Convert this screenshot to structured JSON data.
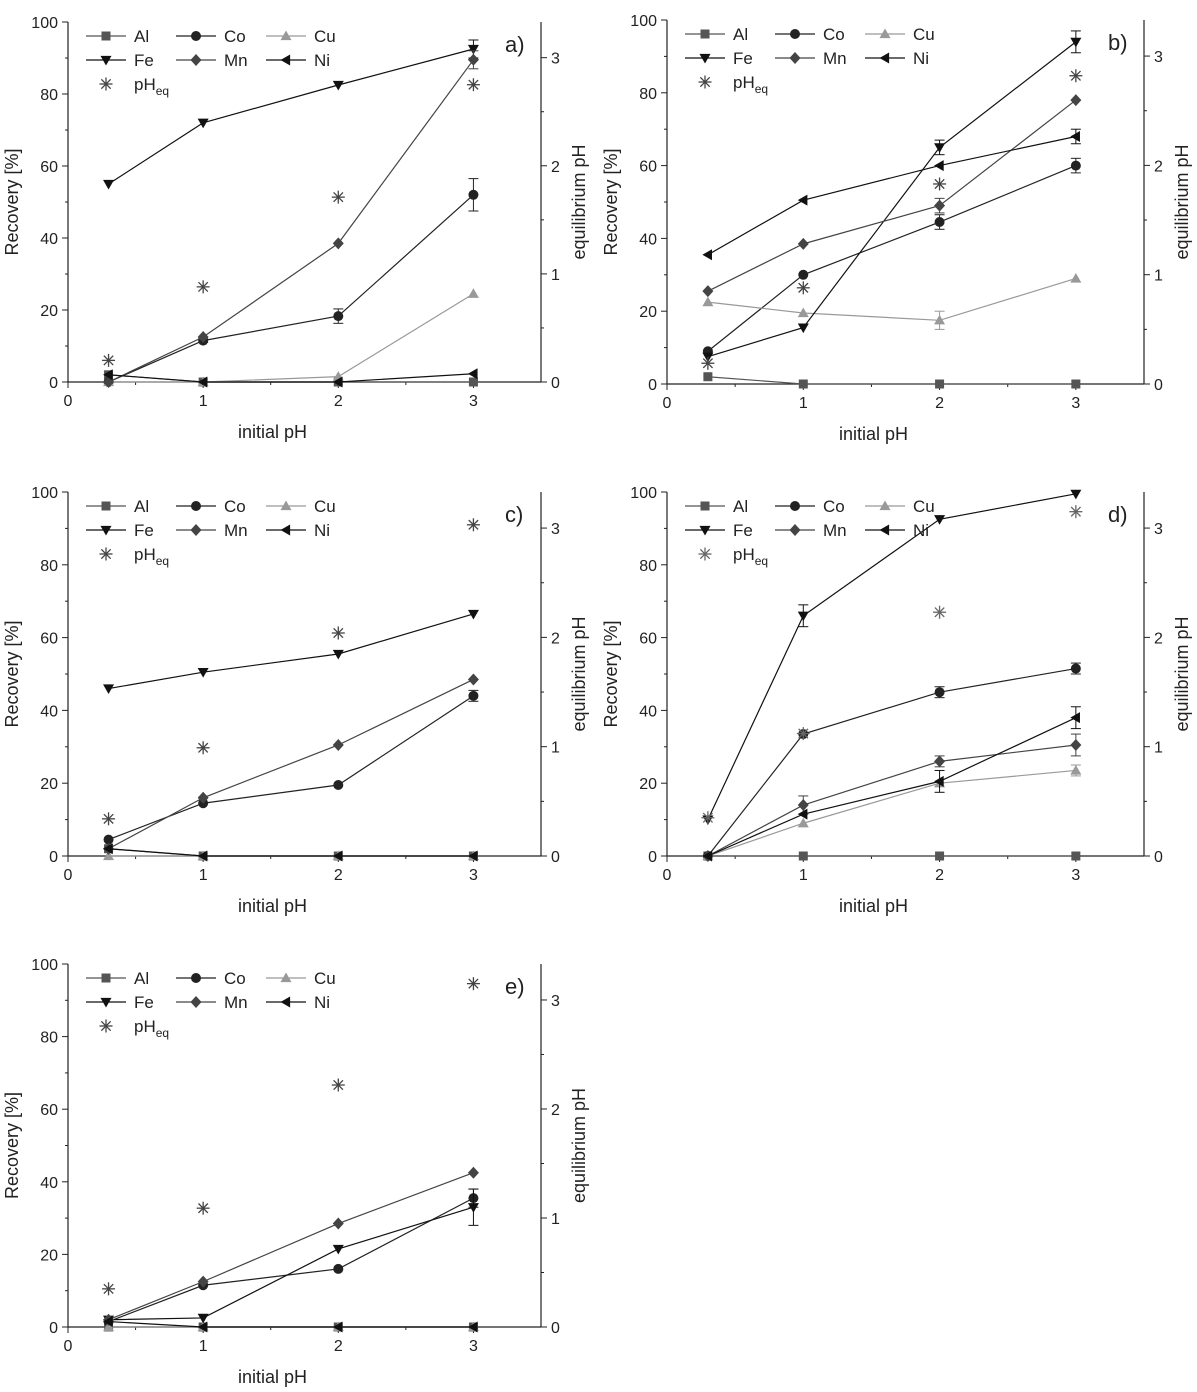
{
  "chart_data": [
    {
      "type": "line",
      "panel_label": "a)",
      "xlabel": "initial pH",
      "ylabel": "Recovery [%]",
      "y2label": "equilibrium pH",
      "xlim": [
        0,
        3.5
      ],
      "ylim": [
        0,
        100
      ],
      "y2lim": [
        0,
        3.33
      ],
      "xticks": [
        "0",
        "1",
        "2",
        "3"
      ],
      "yticks": [
        "0",
        "20",
        "40",
        "60",
        "80",
        "100"
      ],
      "y2ticks": [
        "0",
        "1",
        "2",
        "3"
      ],
      "legend_position": "top-left",
      "x": [
        0.3,
        1,
        2,
        3
      ],
      "series": [
        {
          "name": "Al",
          "values": [
            2,
            0,
            0,
            0
          ],
          "color": "#555555",
          "marker": "square"
        },
        {
          "name": "Co",
          "values": [
            0,
            11.5,
            18.3,
            52
          ],
          "color": "#222222",
          "marker": "circle",
          "errors": [
            0,
            0.5,
            2,
            4.5
          ]
        },
        {
          "name": "Cu",
          "values": [
            0,
            0,
            1.5,
            24.5
          ],
          "color": "#999999",
          "marker": "triangle-up"
        },
        {
          "name": "Fe",
          "values": [
            55,
            72,
            82.5,
            92.5
          ],
          "color": "#111111",
          "marker": "triangle-down",
          "errors": [
            0,
            0,
            0,
            2.5
          ]
        },
        {
          "name": "Mn",
          "values": [
            0,
            12.5,
            38.5,
            89.5
          ],
          "color": "#444444",
          "marker": "diamond",
          "errors": [
            0,
            0,
            0,
            2.5
          ]
        },
        {
          "name": "Ni",
          "values": [
            2,
            0,
            0,
            2.3
          ],
          "color": "#111111",
          "marker": "triangle-left"
        }
      ],
      "pH_eq": {
        "name_main": "pH",
        "name_sub": "eq",
        "x": [
          0.3,
          1,
          2,
          3
        ],
        "values": [
          0.2,
          0.88,
          1.71,
          2.75
        ],
        "color": "#444444"
      }
    },
    {
      "type": "line",
      "panel_label": "b)",
      "xlabel": "initial pH",
      "ylabel": "Recovery [%]",
      "y2label": "equilibrium pH",
      "xlim": [
        0,
        3.5
      ],
      "ylim": [
        0,
        100
      ],
      "y2lim": [
        0,
        3.33
      ],
      "xticks": [
        "0",
        "1",
        "2",
        "3"
      ],
      "yticks": [
        "0",
        "20",
        "40",
        "60",
        "80",
        "100"
      ],
      "y2ticks": [
        "0",
        "1",
        "2",
        "3"
      ],
      "legend_position": "top-left",
      "x": [
        0.3,
        1,
        2,
        3
      ],
      "series": [
        {
          "name": "Al",
          "values": [
            2,
            0,
            0,
            0
          ],
          "color": "#555555",
          "marker": "square"
        },
        {
          "name": "Co",
          "values": [
            9,
            30,
            44.5,
            60
          ],
          "color": "#222222",
          "marker": "circle",
          "errors": [
            0,
            0,
            2,
            2
          ]
        },
        {
          "name": "Cu",
          "values": [
            22.5,
            19.5,
            17.5,
            29
          ],
          "color": "#999999",
          "marker": "triangle-up",
          "errors": [
            0,
            0,
            2.5,
            0
          ]
        },
        {
          "name": "Fe",
          "values": [
            7.5,
            15.5,
            65,
            94
          ],
          "color": "#111111",
          "marker": "triangle-down",
          "errors": [
            0,
            0,
            2,
            3
          ]
        },
        {
          "name": "Mn",
          "values": [
            25.5,
            38.5,
            49,
            78
          ],
          "color": "#444444",
          "marker": "diamond",
          "errors": [
            0,
            0,
            2,
            0
          ]
        },
        {
          "name": "Ni",
          "values": [
            35.5,
            50.5,
            60,
            68
          ],
          "color": "#111111",
          "marker": "triangle-left",
          "errors": [
            0,
            0,
            0,
            2
          ]
        }
      ],
      "pH_eq": {
        "name_main": "pH",
        "name_sub": "eq",
        "x": [
          0.3,
          1,
          2,
          3
        ],
        "values": [
          0.19,
          0.88,
          1.83,
          2.82
        ],
        "color": "#444444"
      }
    },
    {
      "type": "line",
      "panel_label": "c)",
      "xlabel": "initial pH",
      "ylabel": "Recovery [%]",
      "y2label": "equilibrium pH",
      "xlim": [
        0,
        3.5
      ],
      "ylim": [
        0,
        100
      ],
      "y2lim": [
        0,
        3.33
      ],
      "xticks": [
        "0",
        "1",
        "2",
        "3"
      ],
      "yticks": [
        "0",
        "20",
        "40",
        "60",
        "80",
        "100"
      ],
      "y2ticks": [
        "0",
        "1",
        "2",
        "3"
      ],
      "legend_position": "top-left",
      "x": [
        0.3,
        1,
        2,
        3
      ],
      "series": [
        {
          "name": "Al",
          "values": [
            2,
            0,
            0,
            0
          ],
          "color": "#555555",
          "marker": "square"
        },
        {
          "name": "Co",
          "values": [
            4.5,
            14.5,
            19.5,
            44
          ],
          "color": "#222222",
          "marker": "circle",
          "errors": [
            0,
            0,
            0,
            1.5
          ]
        },
        {
          "name": "Cu",
          "values": [
            0,
            0,
            0,
            0
          ],
          "color": "#999999",
          "marker": "triangle-up"
        },
        {
          "name": "Fe",
          "values": [
            46,
            50.5,
            55.5,
            66.5
          ],
          "color": "#111111",
          "marker": "triangle-down"
        },
        {
          "name": "Mn",
          "values": [
            2,
            16,
            30.5,
            48.5
          ],
          "color": "#444444",
          "marker": "diamond"
        },
        {
          "name": "Ni",
          "values": [
            2,
            0,
            0,
            0
          ],
          "color": "#111111",
          "marker": "triangle-left"
        }
      ],
      "pH_eq": {
        "name_main": "pH",
        "name_sub": "eq",
        "x": [
          0.3,
          1,
          2,
          3
        ],
        "values": [
          0.34,
          0.99,
          2.04,
          3.03
        ],
        "color": "#444444"
      }
    },
    {
      "type": "line",
      "panel_label": "d)",
      "xlabel": "initial pH",
      "ylabel": "Recovery [%]",
      "y2label": "equilibrium pH",
      "xlim": [
        0,
        3.5
      ],
      "ylim": [
        0,
        100
      ],
      "y2lim": [
        0,
        3.33
      ],
      "xticks": [
        "0",
        "1",
        "2",
        "3"
      ],
      "yticks": [
        "0",
        "20",
        "40",
        "60",
        "80",
        "100"
      ],
      "y2ticks": [
        "0",
        "1",
        "2",
        "3"
      ],
      "legend_position": "top-left",
      "x": [
        0.3,
        1,
        2,
        3
      ],
      "series": [
        {
          "name": "Al",
          "values": [
            0,
            0,
            0,
            0
          ],
          "color": "#555555",
          "marker": "square"
        },
        {
          "name": "Co",
          "values": [
            0,
            33.5,
            45,
            51.5
          ],
          "color": "#222222",
          "marker": "circle",
          "errors": [
            0,
            0,
            1.5,
            1.5
          ]
        },
        {
          "name": "Cu",
          "values": [
            0,
            9,
            20,
            23.5
          ],
          "color": "#999999",
          "marker": "triangle-up",
          "errors": [
            0,
            0,
            0,
            1.5
          ]
        },
        {
          "name": "Fe",
          "values": [
            10,
            66,
            92.5,
            99.5
          ],
          "color": "#111111",
          "marker": "triangle-down",
          "errors": [
            0,
            3,
            0,
            0
          ]
        },
        {
          "name": "Mn",
          "values": [
            0,
            14,
            26,
            30.5
          ],
          "color": "#444444",
          "marker": "diamond",
          "errors": [
            0,
            2.5,
            1.5,
            3
          ]
        },
        {
          "name": "Ni",
          "values": [
            0,
            11.5,
            20.5,
            38
          ],
          "color": "#111111",
          "marker": "triangle-left",
          "errors": [
            0,
            0,
            3,
            3
          ]
        }
      ],
      "pH_eq": {
        "name_main": "pH",
        "name_sub": "eq",
        "x": [
          0.3,
          1,
          2,
          3
        ],
        "values": [
          0.35,
          1.12,
          2.23,
          3.15
        ],
        "color": "#666666"
      }
    },
    {
      "type": "line",
      "panel_label": "e)",
      "xlabel": "initial pH",
      "ylabel": "Recovery [%]",
      "y2label": "equilibrium pH",
      "xlim": [
        0,
        3.5
      ],
      "ylim": [
        0,
        100
      ],
      "y2lim": [
        0,
        3.33
      ],
      "xticks": [
        "0",
        "1",
        "2",
        "3"
      ],
      "yticks": [
        "0",
        "20",
        "40",
        "60",
        "80",
        "100"
      ],
      "y2ticks": [
        "0",
        "1",
        "2",
        "3"
      ],
      "legend_position": "top-left",
      "x": [
        0.3,
        1,
        2,
        3
      ],
      "series": [
        {
          "name": "Al",
          "values": [
            0,
            0,
            0,
            0
          ],
          "color": "#555555",
          "marker": "square"
        },
        {
          "name": "Co",
          "values": [
            1.5,
            11.5,
            16,
            35.5
          ],
          "color": "#222222",
          "marker": "circle",
          "errors": [
            0,
            0,
            0,
            2.5
          ]
        },
        {
          "name": "Cu",
          "values": [
            0,
            0,
            0,
            0
          ],
          "color": "#999999",
          "marker": "triangle-up"
        },
        {
          "name": "Fe",
          "values": [
            2,
            2.5,
            21.5,
            33
          ],
          "color": "#111111",
          "marker": "triangle-down",
          "errors": [
            0,
            0,
            0,
            5
          ]
        },
        {
          "name": "Mn",
          "values": [
            2,
            12.5,
            28.5,
            42.5
          ],
          "color": "#444444",
          "marker": "diamond"
        },
        {
          "name": "Ni",
          "values": [
            1.5,
            0,
            0,
            0
          ],
          "color": "#111111",
          "marker": "triangle-left"
        }
      ],
      "pH_eq": {
        "name_main": "pH",
        "name_sub": "eq",
        "x": [
          0.3,
          1,
          2,
          3
        ],
        "values": [
          0.35,
          1.09,
          2.22,
          3.15
        ],
        "color": "#444444"
      }
    }
  ]
}
